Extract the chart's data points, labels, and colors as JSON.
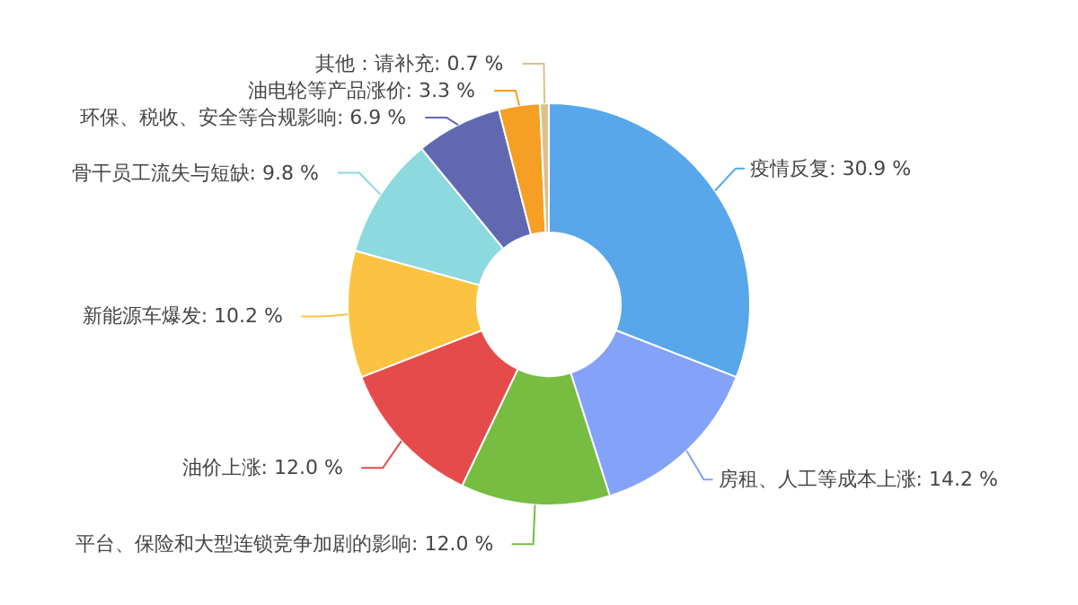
{
  "chart_data": {
    "type": "donut",
    "categories": [
      "疫情反复",
      "房租、人工等成本上涨",
      "平台、保险和大型连锁竞争加剧的影响",
      "油价上涨",
      "新能源车爆发",
      "骨干员工流失与短缺",
      "环保、税收、安全等合规影响",
      "油电轮等产品涨价",
      "其他：请补充"
    ],
    "values": [
      30.9,
      14.2,
      12.0,
      12.0,
      10.2,
      9.8,
      6.9,
      3.3,
      0.7
    ],
    "colors": [
      "#57a7ea",
      "#84a2f8",
      "#76bd42",
      "#e64b4b",
      "#fbc341",
      "#8cd9df",
      "#6069b0",
      "#f59f24",
      "#dcc08a"
    ],
    "value_labels": [
      ": 30.9 %",
      ": 14.2 %",
      ": 12.0 %",
      ": 12.0 %",
      ": 10.2 %",
      ": 9.8 %",
      ": 6.9 %",
      ": 3.3 %",
      ": 0.7 %"
    ]
  }
}
